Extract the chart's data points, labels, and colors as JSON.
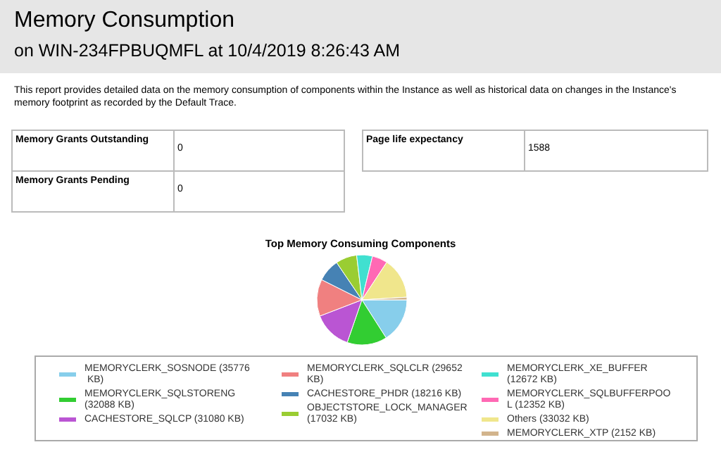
{
  "chart_data": [
    {
      "type": "other",
      "title": "Memory Consumption",
      "subtitle": "on WIN-234FPBUQMFL at 10/4/2019 8:26:43 AM",
      "annotations": [
        "This report provides detailed data on the memory consumption of components within the Instance as well as historical data on changes in the Instance's memory footprint as recorded by the Default Trace."
      ],
      "categories": [
        "Memory Grants Outstanding",
        "Memory Grants Pending",
        "Page life expectancy"
      ],
      "values": [
        0,
        0,
        1588
      ],
      "data_labels": true
    },
    {
      "type": "pie",
      "title": "Top Memory Consuming Components",
      "categories": [
        "MEMORYCLERK_SOSNODE (35776 KB)",
        "MEMORYCLERK_SQLSTORENG (32088 KB)",
        "CACHESTORE_SQLCP (31080 KB)",
        "MEMORYCLERK_SQLCLR (29652 KB)",
        "CACHESTORE_PHDR (18216 KB)",
        "OBJECTSTORE_LOCK_MANAGER (17032 KB)",
        "MEMORYCLERK_XE_BUFFER (12672 KB)",
        "MEMORYCLERK_SQLBUFFERPOOL (12352 KB)",
        "Others (33032 KB)",
        "MEMORYCLERK_XTP (2152 KB)"
      ],
      "values": [
        35776,
        32088,
        31080,
        29652,
        18216,
        17032,
        12672,
        12352,
        33032,
        2152
      ],
      "colors": [
        "#87ceeb",
        "#32cd32",
        "#ba55d3",
        "#f08080",
        "#4682b4",
        "#9acd32",
        "#40e0d0",
        "#ff69b4",
        "#f0e68c",
        "#d2b48c"
      ],
      "legend": "bottom"
    }
  ]
}
